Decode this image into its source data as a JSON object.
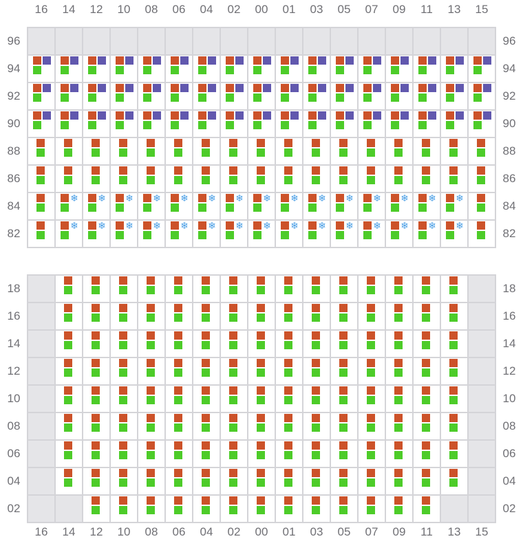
{
  "columns": [
    "16",
    "14",
    "12",
    "10",
    "08",
    "06",
    "04",
    "02",
    "00",
    "01",
    "03",
    "05",
    "07",
    "09",
    "11",
    "13",
    "15"
  ],
  "colors": {
    "orange": "#cc5229",
    "purple": "#6158ae",
    "green": "#4dcc29",
    "empty": "#e5e5e8",
    "snowflake": "#4a9fe6"
  },
  "legend_codes": {
    "empty": "empty slot",
    "opg": "orange+purple+green",
    "og": "orange+green",
    "osg": "orange+snowflake+green"
  },
  "upper": {
    "rows": [
      {
        "label": "96",
        "cells": [
          "empty",
          "empty",
          "empty",
          "empty",
          "empty",
          "empty",
          "empty",
          "empty",
          "empty",
          "empty",
          "empty",
          "empty",
          "empty",
          "empty",
          "empty",
          "empty",
          "empty"
        ]
      },
      {
        "label": "94",
        "cells": [
          "opg",
          "opg",
          "opg",
          "opg",
          "opg",
          "opg",
          "opg",
          "opg",
          "opg",
          "opg",
          "opg",
          "opg",
          "opg",
          "opg",
          "opg",
          "opg",
          "opg"
        ]
      },
      {
        "label": "92",
        "cells": [
          "opg",
          "opg",
          "opg",
          "opg",
          "opg",
          "opg",
          "opg",
          "opg",
          "opg",
          "opg",
          "opg",
          "opg",
          "opg",
          "opg",
          "opg",
          "opg",
          "opg"
        ]
      },
      {
        "label": "90",
        "cells": [
          "opg",
          "opg",
          "opg",
          "opg",
          "opg",
          "opg",
          "opg",
          "opg",
          "opg",
          "opg",
          "opg",
          "opg",
          "opg",
          "opg",
          "opg",
          "opg",
          "opg"
        ]
      },
      {
        "label": "88",
        "cells": [
          "og",
          "og",
          "og",
          "og",
          "og",
          "og",
          "og",
          "og",
          "og",
          "og",
          "og",
          "og",
          "og",
          "og",
          "og",
          "og",
          "og"
        ]
      },
      {
        "label": "86",
        "cells": [
          "og",
          "og",
          "og",
          "og",
          "og",
          "og",
          "og",
          "og",
          "og",
          "og",
          "og",
          "og",
          "og",
          "og",
          "og",
          "og",
          "og"
        ]
      },
      {
        "label": "84",
        "cells": [
          "og",
          "osg",
          "osg",
          "osg",
          "osg",
          "osg",
          "osg",
          "osg",
          "osg",
          "osg",
          "osg",
          "osg",
          "osg",
          "osg",
          "osg",
          "osg",
          "og"
        ]
      },
      {
        "label": "82",
        "cells": [
          "og",
          "osg",
          "osg",
          "osg",
          "osg",
          "osg",
          "osg",
          "osg",
          "osg",
          "osg",
          "osg",
          "osg",
          "osg",
          "osg",
          "osg",
          "osg",
          "og"
        ]
      }
    ]
  },
  "lower": {
    "rows": [
      {
        "label": "18",
        "cells": [
          "empty",
          "og",
          "og",
          "og",
          "og",
          "og",
          "og",
          "og",
          "og",
          "og",
          "og",
          "og",
          "og",
          "og",
          "og",
          "og",
          "empty"
        ]
      },
      {
        "label": "16",
        "cells": [
          "empty",
          "og",
          "og",
          "og",
          "og",
          "og",
          "og",
          "og",
          "og",
          "og",
          "og",
          "og",
          "og",
          "og",
          "og",
          "og",
          "empty"
        ]
      },
      {
        "label": "14",
        "cells": [
          "empty",
          "og",
          "og",
          "og",
          "og",
          "og",
          "og",
          "og",
          "og",
          "og",
          "og",
          "og",
          "og",
          "og",
          "og",
          "og",
          "empty"
        ]
      },
      {
        "label": "12",
        "cells": [
          "empty",
          "og",
          "og",
          "og",
          "og",
          "og",
          "og",
          "og",
          "og",
          "og",
          "og",
          "og",
          "og",
          "og",
          "og",
          "og",
          "empty"
        ]
      },
      {
        "label": "10",
        "cells": [
          "empty",
          "og",
          "og",
          "og",
          "og",
          "og",
          "og",
          "og",
          "og",
          "og",
          "og",
          "og",
          "og",
          "og",
          "og",
          "og",
          "empty"
        ]
      },
      {
        "label": "08",
        "cells": [
          "empty",
          "og",
          "og",
          "og",
          "og",
          "og",
          "og",
          "og",
          "og",
          "og",
          "og",
          "og",
          "og",
          "og",
          "og",
          "og",
          "empty"
        ]
      },
      {
        "label": "06",
        "cells": [
          "empty",
          "og",
          "og",
          "og",
          "og",
          "og",
          "og",
          "og",
          "og",
          "og",
          "og",
          "og",
          "og",
          "og",
          "og",
          "og",
          "empty"
        ]
      },
      {
        "label": "04",
        "cells": [
          "empty",
          "og",
          "og",
          "og",
          "og",
          "og",
          "og",
          "og",
          "og",
          "og",
          "og",
          "og",
          "og",
          "og",
          "og",
          "og",
          "empty"
        ]
      },
      {
        "label": "02",
        "cells": [
          "empty",
          "empty",
          "og",
          "og",
          "og",
          "og",
          "og",
          "og",
          "og",
          "og",
          "og",
          "og",
          "og",
          "og",
          "og",
          "empty",
          "empty"
        ]
      }
    ]
  }
}
